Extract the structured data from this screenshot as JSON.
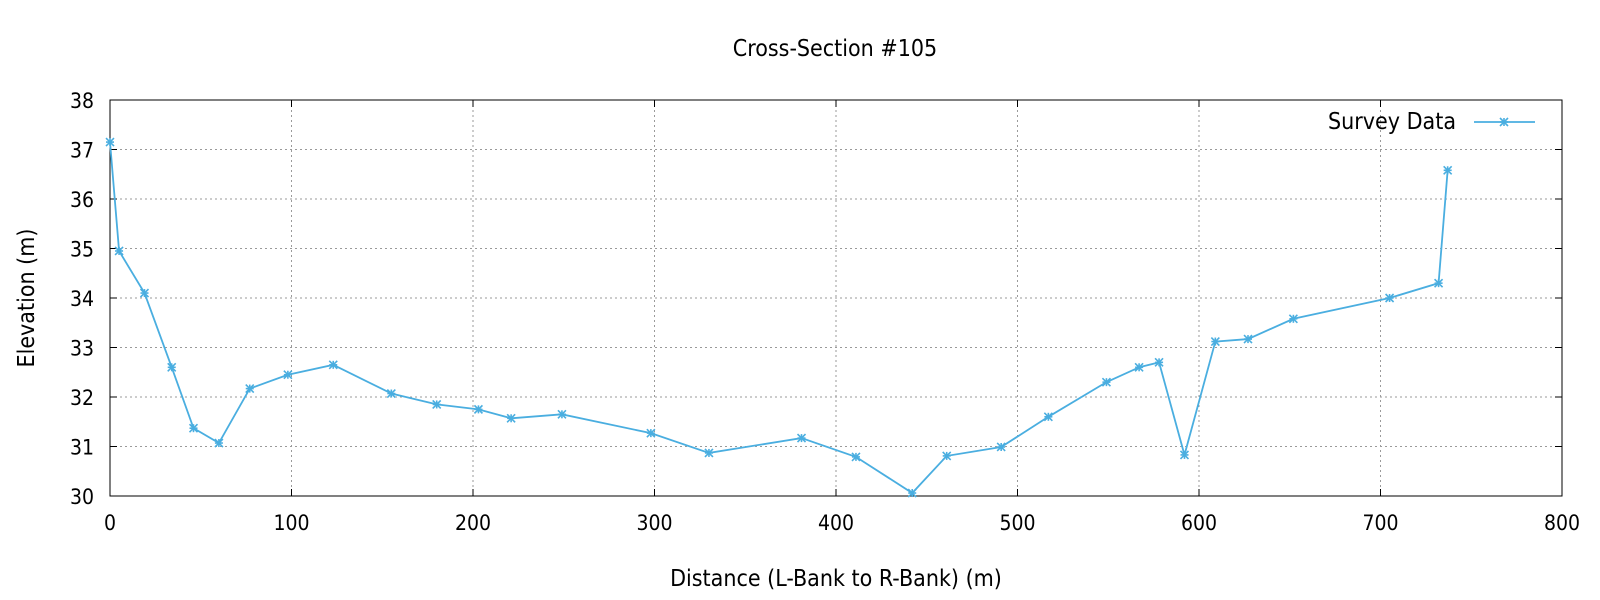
{
  "chart_data": {
    "type": "line",
    "title": "Cross-Section #105",
    "xlabel": "Distance (L-Bank to R-Bank) (m)",
    "ylabel": "Elevation (m)",
    "xlim": [
      0,
      800
    ],
    "ylim": [
      30,
      38
    ],
    "x_ticks": [
      0,
      100,
      200,
      300,
      400,
      500,
      600,
      700,
      800
    ],
    "y_ticks": [
      30,
      31,
      32,
      33,
      34,
      35,
      36,
      37,
      38
    ],
    "grid": true,
    "legend": {
      "position": "top-right"
    },
    "series": [
      {
        "name": "Survey Data",
        "color": "#4aaee0",
        "marker": "asterisk",
        "x": [
          0,
          5,
          19,
          34,
          46,
          60,
          77,
          98,
          123,
          155,
          180,
          203,
          221,
          249,
          298,
          330,
          381,
          411,
          442,
          461,
          491,
          517,
          549,
          567,
          578,
          592,
          609,
          627,
          652,
          705,
          732,
          737
        ],
        "y": [
          37.15,
          34.95,
          34.1,
          32.6,
          31.37,
          31.07,
          32.17,
          32.45,
          32.65,
          32.07,
          31.85,
          31.75,
          31.57,
          31.65,
          31.27,
          30.87,
          31.17,
          30.79,
          30.06,
          30.81,
          30.99,
          31.6,
          32.3,
          32.6,
          32.7,
          30.83,
          33.12,
          33.17,
          33.58,
          34.0,
          34.3,
          36.58
        ]
      }
    ]
  }
}
